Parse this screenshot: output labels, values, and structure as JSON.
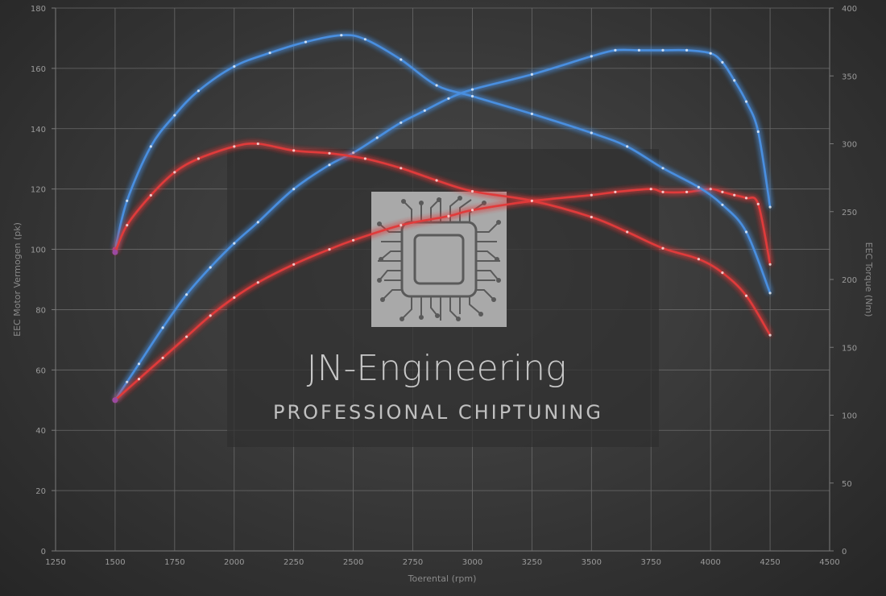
{
  "watermark": {
    "title": "JN-Engineering",
    "subtitle": "PROFESSIONAL CHIPTUNING",
    "logo_icon": "microchip-icon"
  },
  "chart_data": {
    "type": "line",
    "xlabel": "Toerental (rpm)",
    "ylabel_left": "EEC Motor Vermogen (pk)",
    "ylabel_right": "EEC Torque (Nm)",
    "xlim": [
      1250,
      4500
    ],
    "ylim_left": [
      0,
      180
    ],
    "ylim_right": [
      0,
      400
    ],
    "x_ticks": [
      "1250",
      "1500",
      "1750",
      "2000",
      "2250",
      "2500",
      "2750",
      "3000",
      "3250",
      "3500",
      "3750",
      "4000",
      "4250",
      "4500"
    ],
    "y_left_ticks": [
      "0",
      "20",
      "40",
      "60",
      "80",
      "100",
      "120",
      "140",
      "160",
      "180"
    ],
    "y_right_ticks": [
      "0",
      "50",
      "100",
      "150",
      "200",
      "250",
      "300",
      "350",
      "400"
    ],
    "grid": true,
    "series": [
      {
        "axis": "left",
        "color": "#4a8fe0",
        "x": [
          1500,
          1550,
          1600,
          1700,
          1800,
          1900,
          2000,
          2100,
          2250,
          2400,
          2500,
          2600,
          2700,
          2800,
          2900,
          3000,
          3250,
          3500,
          3600,
          3700,
          3800,
          3900,
          4000,
          4050,
          4100,
          4150,
          4200,
          4250
        ],
        "y": [
          50,
          56,
          62,
          74,
          85,
          94,
          102,
          109,
          120,
          128,
          132,
          137,
          142,
          146,
          150,
          153,
          158,
          164,
          166,
          166,
          166,
          166,
          165,
          162,
          156,
          149,
          139,
          114
        ]
      },
      {
        "axis": "left",
        "color": "#e03a3a",
        "x": [
          1500,
          1600,
          1700,
          1800,
          1900,
          2000,
          2100,
          2250,
          2400,
          2500,
          2700,
          2900,
          3000,
          3250,
          3500,
          3600,
          3750,
          3800,
          3900,
          4000,
          4050,
          4100,
          4150,
          4200,
          4250
        ],
        "y": [
          50,
          57,
          64,
          71,
          78,
          84,
          89,
          95,
          100,
          103,
          108,
          111,
          113,
          116,
          118,
          119,
          120,
          119,
          119,
          120,
          119,
          118,
          117,
          115,
          95
        ]
      },
      {
        "axis": "right",
        "color": "#4a8fe0",
        "x": [
          1500,
          1550,
          1650,
          1750,
          1850,
          2000,
          2150,
          2300,
          2450,
          2550,
          2700,
          2850,
          3000,
          3250,
          3500,
          3650,
          3800,
          3950,
          4050,
          4150,
          4250
        ],
        "y": [
          222,
          258,
          298,
          321,
          339,
          357,
          367,
          375,
          380,
          377,
          362,
          343,
          335,
          322,
          308,
          298,
          282,
          268,
          255,
          235,
          190
        ]
      },
      {
        "axis": "right",
        "color": "#e03a3a",
        "x": [
          1500,
          1550,
          1650,
          1750,
          1850,
          2000,
          2100,
          2250,
          2400,
          2550,
          2700,
          2850,
          3000,
          3250,
          3500,
          3650,
          3800,
          3950,
          4050,
          4150,
          4250
        ],
        "y": [
          220,
          240,
          262,
          279,
          289,
          298,
          300,
          295,
          293,
          289,
          282,
          273,
          265,
          258,
          246,
          235,
          223,
          215,
          205,
          188,
          159
        ]
      }
    ]
  }
}
